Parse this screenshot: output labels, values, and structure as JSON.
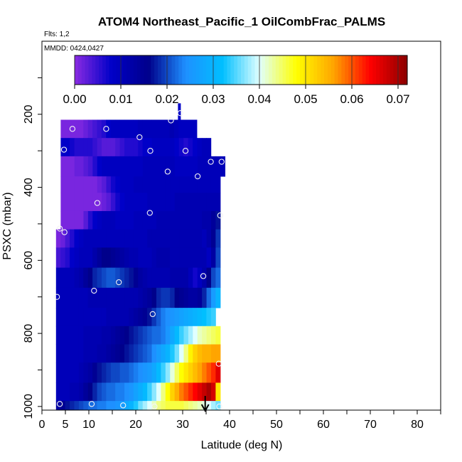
{
  "chart_data": {
    "type": "heatmap",
    "title": "ATOM4 Northeast_Pacific_1 OilCombFrac_PALMS",
    "flights_label": "Flts: 1,2",
    "mmdd_label": "MMDD: 0424,0427",
    "xlabel": "Latitude (deg N)",
    "ylabel": "PSXC (mbar)",
    "xlim": [
      0,
      85
    ],
    "ylim": [
      1010,
      0
    ],
    "x_ticks": [
      0,
      5,
      10,
      20,
      30,
      40,
      50,
      60,
      70,
      80
    ],
    "y_ticks": [
      200,
      400,
      600,
      800,
      1000
    ],
    "colorbar": {
      "min": 0,
      "max": 0.072,
      "ticks": [
        "0.00",
        "0.01",
        "0.02",
        "0.03",
        "0.04",
        "0.05",
        "0.06",
        "0.07"
      ],
      "tick_values": [
        0,
        0.01,
        0.02,
        0.03,
        0.04,
        0.05,
        0.06,
        0.07
      ],
      "colors": [
        "#8a2be2",
        "#0000c8",
        "#00008b",
        "#1e90ff",
        "#00bfff",
        "#e0ffff",
        "#ffff00",
        "#ffa500",
        "#ff0000",
        "#8b0000"
      ]
    },
    "pressure_bands": [
      {
        "p_top": 215,
        "p_bot": 265,
        "lat_min": 4,
        "lat_max": 33,
        "values": [
          0.001,
          0.001,
          0.001,
          0.001,
          0.001,
          0.002,
          0.003,
          0.004,
          0.005,
          0.006,
          0.008,
          0.009,
          0.009,
          0.009,
          0.009,
          0.009,
          0.009,
          0.01,
          0.01,
          0.01,
          0.01,
          0.01,
          0.01,
          0.01,
          0.011,
          0.01,
          0.009,
          0.009,
          0.009,
          0.009
        ]
      },
      {
        "p_top": 265,
        "p_bot": 315,
        "lat_min": 4,
        "lat_max": 36,
        "values": [
          0.008,
          0.008,
          0.007,
          0.006,
          0.006,
          0.006,
          0.006,
          0.005,
          0.004,
          0.003,
          0.003,
          0.003,
          0.004,
          0.005,
          0.006,
          0.006,
          0.006,
          0.007,
          0.008,
          0.008,
          0.009,
          0.009,
          0.009,
          0.009,
          0.009,
          0.008,
          0.007,
          0.006,
          0.007,
          0.008,
          0.009,
          0.01,
          0.01
        ]
      },
      {
        "p_top": 315,
        "p_bot": 370,
        "lat_min": 4,
        "lat_max": 39,
        "values": [
          0.001,
          0.001,
          0.001,
          0.002,
          0.002,
          0.003,
          0.004,
          0.006,
          0.008,
          0.009,
          0.009,
          0.009,
          0.009,
          0.009,
          0.009,
          0.009,
          0.009,
          0.009,
          0.01,
          0.01,
          0.01,
          0.01,
          0.01,
          0.01,
          0.01,
          0.009,
          0.009,
          0.009,
          0.009,
          0.009,
          0.01,
          0.01,
          0.01,
          0.01,
          0.01,
          0.01
        ]
      },
      {
        "p_top": 370,
        "p_bot": 415,
        "lat_min": 4,
        "lat_max": 38,
        "values": [
          0.001,
          0.001,
          0.001,
          0.001,
          0.001,
          0.001,
          0.001,
          0.001,
          0.002,
          0.003,
          0.005,
          0.007,
          0.008,
          0.009,
          0.009,
          0.009,
          0.01,
          0.01,
          0.01,
          0.01,
          0.01,
          0.01,
          0.01,
          0.01,
          0.01,
          0.01,
          0.01,
          0.01,
          0.01,
          0.01,
          0.01,
          0.01,
          0.01,
          0.01,
          0.01
        ]
      },
      {
        "p_top": 415,
        "p_bot": 465,
        "lat_min": 4,
        "lat_max": 38,
        "values": [
          0.001,
          0.001,
          0.001,
          0.001,
          0.001,
          0.001,
          0.001,
          0.001,
          0.001,
          0.002,
          0.003,
          0.005,
          0.007,
          0.008,
          0.009,
          0.009,
          0.009,
          0.009,
          0.009,
          0.01,
          0.01,
          0.01,
          0.01,
          0.01,
          0.01,
          0.011,
          0.011,
          0.011,
          0.011,
          0.011,
          0.011,
          0.011,
          0.011,
          0.011,
          0.011
        ]
      },
      {
        "p_top": 465,
        "p_bot": 515,
        "lat_min": 4,
        "lat_max": 38,
        "values": [
          0.001,
          0.001,
          0.001,
          0.001,
          0.001,
          0.003,
          0.006,
          0.008,
          0.009,
          0.01,
          0.01,
          0.01,
          0.009,
          0.009,
          0.009,
          0.009,
          0.01,
          0.01,
          0.01,
          0.01,
          0.01,
          0.011,
          0.011,
          0.011,
          0.011,
          0.011,
          0.011,
          0.011,
          0.011,
          0.011,
          0.011,
          0.012,
          0.012,
          0.014,
          0.017
        ]
      },
      {
        "p_top": 515,
        "p_bot": 565,
        "lat_min": 3,
        "lat_max": 38,
        "values": [
          0.001,
          0.002,
          0.004,
          0.006,
          0.008,
          0.009,
          0.01,
          0.01,
          0.01,
          0.01,
          0.01,
          0.01,
          0.01,
          0.01,
          0.01,
          0.01,
          0.01,
          0.01,
          0.01,
          0.01,
          0.011,
          0.011,
          0.011,
          0.011,
          0.011,
          0.011,
          0.011,
          0.011,
          0.011,
          0.011,
          0.011,
          0.011,
          0.01,
          0.012,
          0.015,
          0.019
        ]
      },
      {
        "p_top": 565,
        "p_bot": 620,
        "lat_min": 3,
        "lat_max": 38,
        "values": [
          0.004,
          0.005,
          0.006,
          0.008,
          0.009,
          0.01,
          0.01,
          0.01,
          0.012,
          0.014,
          0.016,
          0.016,
          0.015,
          0.014,
          0.013,
          0.012,
          0.011,
          0.011,
          0.01,
          0.01,
          0.01,
          0.011,
          0.012,
          0.012,
          0.012,
          0.011,
          0.011,
          0.011,
          0.011,
          0.011,
          0.011,
          0.011,
          0.011,
          0.009,
          0.013,
          0.02
        ]
      },
      {
        "p_top": 620,
        "p_bot": 675,
        "lat_min": 3,
        "lat_max": 38,
        "values": [
          0.01,
          0.01,
          0.01,
          0.01,
          0.011,
          0.012,
          0.014,
          0.016,
          0.018,
          0.019,
          0.02,
          0.021,
          0.021,
          0.02,
          0.019,
          0.018,
          0.017,
          0.015,
          0.013,
          0.012,
          0.011,
          0.011,
          0.011,
          0.011,
          0.011,
          0.012,
          0.012,
          0.012,
          0.012,
          0.01,
          0.007,
          0.009,
          0.012,
          0.016,
          0.02,
          0.022
        ]
      },
      {
        "p_top": 675,
        "p_bot": 730,
        "lat_min": 3,
        "lat_max": 38,
        "values": [
          0.01,
          0.01,
          0.01,
          0.01,
          0.01,
          0.01,
          0.01,
          0.011,
          0.011,
          0.011,
          0.011,
          0.011,
          0.011,
          0.011,
          0.011,
          0.011,
          0.011,
          0.011,
          0.012,
          0.013,
          0.014,
          0.016,
          0.018,
          0.019,
          0.019,
          0.018,
          0.016,
          0.015,
          0.014,
          0.013,
          0.013,
          0.014,
          0.018,
          0.022,
          0.026,
          0.03
        ]
      },
      {
        "p_top": 730,
        "p_bot": 780,
        "lat_min": 3,
        "lat_max": 37,
        "values": [
          0.01,
          0.01,
          0.01,
          0.01,
          0.01,
          0.01,
          0.01,
          0.01,
          0.01,
          0.01,
          0.01,
          0.011,
          0.011,
          0.011,
          0.011,
          0.011,
          0.012,
          0.013,
          0.014,
          0.015,
          0.017,
          0.019,
          0.021,
          0.023,
          0.024,
          0.025,
          0.026,
          0.027,
          0.028,
          0.029,
          0.03,
          0.031,
          0.032,
          0.033,
          0.034
        ]
      },
      {
        "p_top": 780,
        "p_bot": 830,
        "lat_min": 3,
        "lat_max": 38,
        "values": [
          0.01,
          0.01,
          0.01,
          0.01,
          0.01,
          0.01,
          0.011,
          0.011,
          0.011,
          0.011,
          0.012,
          0.012,
          0.013,
          0.014,
          0.015,
          0.016,
          0.017,
          0.018,
          0.019,
          0.02,
          0.021,
          0.022,
          0.022,
          0.023,
          0.025,
          0.028,
          0.031,
          0.034,
          0.036,
          0.038,
          0.04,
          0.042,
          0.043,
          0.044,
          0.045,
          0.046
        ]
      },
      {
        "p_top": 830,
        "p_bot": 880,
        "lat_min": 3,
        "lat_max": 38,
        "values": [
          0.01,
          0.01,
          0.01,
          0.01,
          0.01,
          0.01,
          0.011,
          0.011,
          0.011,
          0.012,
          0.012,
          0.013,
          0.014,
          0.015,
          0.016,
          0.017,
          0.018,
          0.019,
          0.02,
          0.021,
          0.022,
          0.024,
          0.026,
          0.028,
          0.03,
          0.033,
          0.036,
          0.04,
          0.044,
          0.049,
          0.052,
          0.054,
          0.055,
          0.055,
          0.056,
          0.056
        ]
      },
      {
        "p_top": 880,
        "p_bot": 935,
        "lat_min": 3,
        "lat_max": 38,
        "values": [
          0.01,
          0.01,
          0.01,
          0.01,
          0.01,
          0.011,
          0.012,
          0.013,
          0.015,
          0.017,
          0.018,
          0.019,
          0.02,
          0.02,
          0.021,
          0.021,
          0.022,
          0.023,
          0.024,
          0.025,
          0.026,
          0.028,
          0.031,
          0.034,
          0.037,
          0.041,
          0.045,
          0.048,
          0.05,
          0.052,
          0.054,
          0.056,
          0.058,
          0.06,
          0.062,
          0.066
        ]
      },
      {
        "p_top": 935,
        "p_bot": 985,
        "lat_min": 3,
        "lat_max": 38,
        "values": [
          0.01,
          0.01,
          0.01,
          0.011,
          0.011,
          0.012,
          0.014,
          0.016,
          0.018,
          0.02,
          0.021,
          0.022,
          0.022,
          0.023,
          0.023,
          0.024,
          0.025,
          0.027,
          0.029,
          0.031,
          0.034,
          0.037,
          0.04,
          0.044,
          0.048,
          0.052,
          0.055,
          0.058,
          0.06,
          0.062,
          0.064,
          0.066,
          0.068,
          0.07,
          0.067,
          0.05
        ]
      },
      {
        "p_top": 985,
        "p_bot": 1010,
        "lat_min": 3,
        "lat_max": 38,
        "values": [
          0.013,
          0.015,
          0.017,
          0.018,
          0.019,
          0.02,
          0.021,
          0.022,
          0.022,
          0.023,
          0.023,
          0.024,
          0.024,
          0.025,
          0.026,
          0.028,
          0.03,
          0.033,
          0.036,
          0.038,
          0.04,
          0.042,
          0.044,
          0.045,
          0.046,
          0.046,
          0.046,
          0.046,
          0.045,
          0.044,
          0.043,
          0.042,
          0.041,
          0.04,
          0.038,
          0.036
        ]
      }
    ],
    "column_spike": {
      "lat": 29.3,
      "p_top": 170,
      "p_bot": 215,
      "value": 0.008
    },
    "samples": [
      {
        "lat": 29.5,
        "p": 197
      },
      {
        "lat": 27.5,
        "p": 217
      },
      {
        "lat": 6.5,
        "p": 240
      },
      {
        "lat": 13.7,
        "p": 240
      },
      {
        "lat": 20.8,
        "p": 263
      },
      {
        "lat": 4.7,
        "p": 297
      },
      {
        "lat": 23.1,
        "p": 300
      },
      {
        "lat": 30.6,
        "p": 300
      },
      {
        "lat": 36.0,
        "p": 330
      },
      {
        "lat": 38.3,
        "p": 330
      },
      {
        "lat": 26.8,
        "p": 357
      },
      {
        "lat": 33.2,
        "p": 370
      },
      {
        "lat": 11.8,
        "p": 443
      },
      {
        "lat": 23.0,
        "p": 470
      },
      {
        "lat": 38.0,
        "p": 477
      },
      {
        "lat": 3.8,
        "p": 513
      },
      {
        "lat": 4.8,
        "p": 523
      },
      {
        "lat": 34.4,
        "p": 643
      },
      {
        "lat": 16.4,
        "p": 660
      },
      {
        "lat": 11.1,
        "p": 683
      },
      {
        "lat": 3.2,
        "p": 700
      },
      {
        "lat": 23.6,
        "p": 747
      },
      {
        "lat": 37.7,
        "p": 883
      },
      {
        "lat": 3.8,
        "p": 993
      },
      {
        "lat": 10.6,
        "p": 993
      },
      {
        "lat": 17.3,
        "p": 997
      },
      {
        "lat": 24.0,
        "p": 1000
      },
      {
        "lat": 37.8,
        "p": 1000
      }
    ],
    "arrow_marker": {
      "lat": 34.8,
      "direction": "down"
    }
  }
}
